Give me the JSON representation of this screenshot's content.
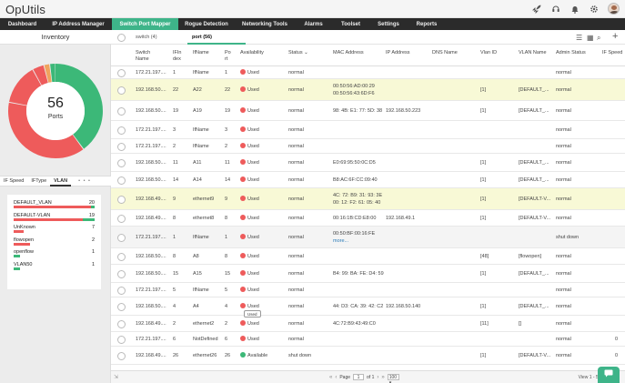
{
  "app": {
    "title": "OpUtils"
  },
  "topbar_icons": [
    "rocket-icon",
    "headset-icon",
    "bell-icon",
    "gear-icon",
    "avatar"
  ],
  "nav": {
    "items": [
      "Dashboard",
      "IP Address Manager",
      "Switch Port Mapper",
      "Rogue Detection",
      "Networking Tools",
      "Alarms",
      "Toolset",
      "Settings",
      "Reports"
    ],
    "active_index": 2
  },
  "inventory": {
    "title": "Inventory",
    "donut": {
      "value": "56",
      "label": "Ports"
    },
    "chart_data": {
      "type": "pie",
      "title": "",
      "legend": "none",
      "segments": [
        {
          "value": 20,
          "color": "#3cb878"
        },
        {
          "value": 19,
          "color": "#ee5b5b"
        },
        {
          "value": 7,
          "color": "#ee5b5b"
        },
        {
          "value": 2,
          "color": "#ee5b5b"
        },
        {
          "value": 1,
          "color": "#f0a35e"
        },
        {
          "value": 1,
          "color": "#3cb878"
        }
      ]
    },
    "filter_tabs": [
      "IF Speed",
      "IFType",
      "VLAN",
      "• • •"
    ],
    "active_filter": 2,
    "vlans": [
      {
        "name": "DEFAULT_VLAN",
        "count": "20",
        "used": 0.95,
        "available": 0.05
      },
      {
        "name": "DEFAULT-VLAN",
        "count": "19",
        "used": 0.85,
        "available": 0.15
      },
      {
        "name": "UnKnown",
        "count": "7",
        "used": 0.12,
        "available": 0.0
      },
      {
        "name": "flowopen",
        "count": "2",
        "used": 0.2,
        "available": 0.0
      },
      {
        "name": "openflow",
        "count": "1",
        "used": 0.0,
        "available": 0.08
      },
      {
        "name": "VLAN50",
        "count": "1",
        "used": 0.0,
        "available": 0.08
      }
    ]
  },
  "tabs": {
    "switch": "switch (4)",
    "port": "port (56)"
  },
  "toolbar": {
    "list_icon": "☰",
    "grid_icon": "▦",
    "search_icon": "⌕",
    "add_icon": "+"
  },
  "columns": {
    "switch_name": [
      "Switch",
      "Name"
    ],
    "ifindex": [
      "IFIn",
      "dex"
    ],
    "ifname": "IfName",
    "port": [
      "Po",
      "rt"
    ],
    "availability": "Availability",
    "status": "Status",
    "mac": "MAC Address",
    "ip": "IP Address",
    "dns": "DNS Name",
    "vlanid": "Vlan ID",
    "vlanname": "VLAN Name",
    "admin": "Admin Status",
    "ifspeed": "IF Speed"
  },
  "colors": {
    "used": "#ee5b5b",
    "available": "#3cb878",
    "accent": "#3eb489",
    "highlight": "#f8f9d6"
  },
  "rows": [
    {
      "switch": "172.21.197....",
      "ifindex": "1",
      "ifname": "IfName",
      "port": "1",
      "avail": "Used",
      "status": "normal",
      "mac": [],
      "ip": "",
      "vlanid": "",
      "vlanname": "",
      "admin": "normal",
      "speed": "",
      "hl": false,
      "h": 14
    },
    {
      "switch": "192.168.50....",
      "ifindex": "22",
      "ifname": "A22",
      "port": "22",
      "avail": "Used",
      "status": "normal",
      "mac": [
        "00:50:56:AD:00:29",
        "00:50:56:43:6D:F6"
      ],
      "ip": "",
      "vlanid": "[1]",
      "vlanname": "[DEFAULT_...",
      "admin": "normal",
      "speed": "",
      "hl": true,
      "h": 24
    },
    {
      "switch": "192.168.50....",
      "ifindex": "19",
      "ifname": "A19",
      "port": "19",
      "avail": "Used",
      "status": "normal",
      "mac": [
        "98: 4B: E1: 77: 5D: 38"
      ],
      "ip": "192.168.50.223",
      "vlanid": "[1]",
      "vlanname": "[DEFAULT_...",
      "admin": "normal",
      "speed": "",
      "hl": false,
      "h": 22
    },
    {
      "switch": "172.21.197....",
      "ifindex": "3",
      "ifname": "IfName",
      "port": "3",
      "avail": "Used",
      "status": "normal",
      "mac": [],
      "ip": "",
      "vlanid": "",
      "vlanname": "",
      "admin": "normal",
      "speed": "",
      "hl": false,
      "h": 20
    },
    {
      "switch": "172.21.197....",
      "ifindex": "2",
      "ifname": "IfName",
      "port": "2",
      "avail": "Used",
      "status": "normal",
      "mac": [],
      "ip": "",
      "vlanid": "",
      "vlanname": "",
      "admin": "normal",
      "speed": "",
      "hl": false,
      "h": 16
    },
    {
      "switch": "192.168.50....",
      "ifindex": "11",
      "ifname": "A11",
      "port": "11",
      "avail": "Used",
      "status": "normal",
      "mac": [
        "E0:69:95:50:0C:D5"
      ],
      "ip": "",
      "vlanid": "[1]",
      "vlanname": "[DEFAULT_...",
      "admin": "normal",
      "speed": "",
      "hl": false,
      "h": 20
    },
    {
      "switch": "192.168.50....",
      "ifindex": "14",
      "ifname": "A14",
      "port": "14",
      "avail": "Used",
      "status": "normal",
      "mac": [
        "B8:AC:6F:CC:09:40"
      ],
      "ip": "",
      "vlanid": "[1]",
      "vlanname": "[DEFAULT_...",
      "admin": "normal",
      "speed": "",
      "hl": false,
      "h": 18
    },
    {
      "switch": "192.168.49....",
      "ifindex": "9",
      "ifname": "ethernet9",
      "port": "9",
      "avail": "Used",
      "status": "normal",
      "mac": [
        "4C: 72: B9: 31: 93: 3E",
        "00: 12: F2: 61: 05: 40"
      ],
      "ip": "",
      "vlanid": "[1]",
      "vlanname": "[DEFAULT-V...",
      "admin": "normal",
      "speed": "",
      "hl": true,
      "h": 24
    },
    {
      "switch": "192.168.49....",
      "ifindex": "8",
      "ifname": "ethernet8",
      "port": "8",
      "avail": "Used",
      "status": "normal",
      "mac": [
        "00:16:1B:CD:E8:00"
      ],
      "ip": "192.168.49.1",
      "vlanid": "[1]",
      "vlanname": "[DEFAULT-V...",
      "admin": "normal",
      "speed": "",
      "hl": false,
      "h": 18
    },
    {
      "switch": "172.21.197....",
      "ifindex": "1",
      "ifname": "IfName",
      "port": "1",
      "avail": "Used",
      "status": "normal",
      "mac": [
        "00:50:BF:00:16:FE",
        "more..."
      ],
      "ip": "",
      "vlanid": "",
      "vlanname": "",
      "admin": "shut down",
      "speed": "",
      "hl": false,
      "grey": true,
      "h": 24
    },
    {
      "switch": "192.168.50....",
      "ifindex": "8",
      "ifname": "A8",
      "port": "8",
      "avail": "Used",
      "status": "normal",
      "mac": [],
      "ip": "",
      "vlanid": "[48]",
      "vlanname": "[flowopen]",
      "admin": "normal",
      "speed": "",
      "hl": false,
      "h": 18
    },
    {
      "switch": "192.168.50....",
      "ifindex": "15",
      "ifname": "A15",
      "port": "15",
      "avail": "Used",
      "status": "normal",
      "mac": [
        "B4: 99: BA: FE: D4: 59"
      ],
      "ip": "",
      "vlanid": "[1]",
      "vlanname": "[DEFAULT_...",
      "admin": "normal",
      "speed": "",
      "hl": false,
      "h": 20
    },
    {
      "switch": "172.21.197....",
      "ifindex": "5",
      "ifname": "IfName",
      "port": "5",
      "avail": "Used",
      "status": "normal",
      "mac": [],
      "ip": "",
      "vlanid": "",
      "vlanname": "",
      "admin": "normal",
      "speed": "",
      "hl": false,
      "h": 16
    },
    {
      "switch": "192.168.50....",
      "ifindex": "4",
      "ifname": "A4",
      "port": "4",
      "avail": "Used",
      "status": "normal",
      "mac": [
        "44: D3: CA: 39: 42: C2"
      ],
      "ip": "192.168.50.140",
      "vlanid": "[1]",
      "vlanname": "[DEFAULT_...",
      "admin": "normal",
      "speed": "",
      "hl": false,
      "h": 20
    },
    {
      "switch": "192.168.49....",
      "ifindex": "2",
      "ifname": "ethernet2",
      "port": "2",
      "avail": "Used",
      "status": "normal",
      "mac": [
        "4C:72:B9:43:49:C0"
      ],
      "ip": "",
      "vlanid": "[11]",
      "vlanname": "[]",
      "admin": "normal",
      "speed": "",
      "hl": false,
      "h": 18
    },
    {
      "switch": "172.21.197....",
      "ifindex": "6",
      "ifname": "NotDefined",
      "port": "6",
      "avail": "Used",
      "status": "normal",
      "mac": [],
      "ip": "",
      "vlanid": "",
      "vlanname": "",
      "admin": "normal",
      "speed": "0",
      "hl": false,
      "h": 16
    },
    {
      "switch": "192.168.49....",
      "ifindex": "26",
      "ifname": "ethernet26",
      "port": "26",
      "avail": "Available",
      "status": "shut down",
      "mac": [],
      "ip": "",
      "vlanid": "[1]",
      "vlanname": "[DEFAULT-V...",
      "admin": "normal",
      "speed": "0",
      "hl": false,
      "h": 20
    },
    {
      "switch": "192.168.49....",
      "ifindex": "25",
      "ifname": "ethernet25",
      "port": "25",
      "avail": "Available",
      "status": "shut down",
      "mac": [],
      "ip": "",
      "vlanid": "[1]",
      "vlanname": "[DEFAULT-V...",
      "admin": "normal",
      "speed": "0",
      "hl": false,
      "h": 20
    }
  ],
  "tooltip": "Used",
  "pagination": {
    "page_label": "Page",
    "page": "1",
    "of": "of 1",
    "per_page": "100",
    "view": "View 1 - 56 of 56"
  }
}
